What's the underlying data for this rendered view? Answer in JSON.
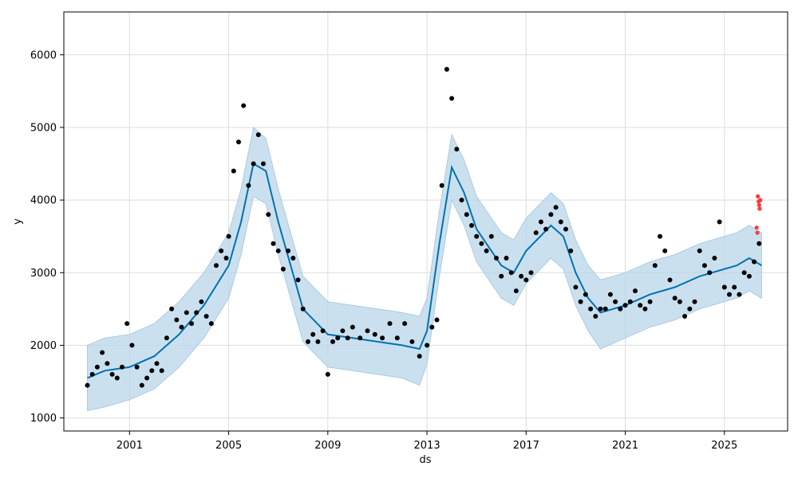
{
  "chart_data": {
    "type": "scatter",
    "title": "",
    "xlabel": "ds",
    "ylabel": "y",
    "x_tick_labels": [
      "2001",
      "2005",
      "2009",
      "2013",
      "2017",
      "2021",
      "2025"
    ],
    "y_tick_labels": [
      "1000",
      "2000",
      "3000",
      "4000",
      "5000",
      "6000"
    ],
    "xlim": [
      1998.35,
      2027.55
    ],
    "ylim": [
      820,
      6590
    ],
    "grid": true,
    "colors": {
      "observed": "#000000",
      "outlier": "#ff3b3b",
      "forecast_line": "#0072B2",
      "uncertainty_band": "#b9d5ea",
      "grid": "#dddddd"
    },
    "series": [
      {
        "role": "observed",
        "x": [
          1999.3,
          1999.5,
          1999.7,
          1999.9,
          2000.1,
          2000.3,
          2000.5,
          2000.7,
          2000.9,
          2001.1,
          2001.3,
          2001.5,
          2001.7,
          2001.9,
          2002.1,
          2002.3,
          2002.5,
          2002.7,
          2002.9,
          2003.1,
          2003.3,
          2003.5,
          2003.7,
          2003.9,
          2004.1,
          2004.3,
          2004.5,
          2004.7,
          2004.9,
          2005.0,
          2005.2,
          2005.4,
          2005.6,
          2005.8,
          2006.0,
          2006.2,
          2006.4,
          2006.6,
          2006.8,
          2007.0,
          2007.2,
          2007.4,
          2007.6,
          2007.8,
          2008.0,
          2008.2,
          2008.4,
          2008.6,
          2008.8,
          2009.0,
          2009.2,
          2009.4,
          2009.6,
          2009.8,
          2010.0,
          2010.3,
          2010.6,
          2010.9,
          2011.2,
          2011.5,
          2011.8,
          2012.1,
          2012.4,
          2012.7,
          2013.0,
          2013.2,
          2013.4,
          2013.6,
          2013.8,
          2014.0,
          2014.2,
          2014.4,
          2014.6,
          2014.8,
          2015.0,
          2015.2,
          2015.4,
          2015.6,
          2015.8,
          2016.0,
          2016.2,
          2016.4,
          2016.6,
          2016.8,
          2017.0,
          2017.2,
          2017.4,
          2017.6,
          2017.8,
          2018.0,
          2018.2,
          2018.4,
          2018.6,
          2018.8,
          2019.0,
          2019.2,
          2019.4,
          2019.6,
          2019.8,
          2020.0,
          2020.2,
          2020.4,
          2020.6,
          2020.8,
          2021.0,
          2021.2,
          2021.4,
          2021.6,
          2021.8,
          2022.0,
          2022.2,
          2022.4,
          2022.6,
          2022.8,
          2023.0,
          2023.2,
          2023.4,
          2023.6,
          2023.8,
          2024.0,
          2024.2,
          2024.4,
          2024.6,
          2024.8,
          2025.0,
          2025.2,
          2025.4,
          2025.6,
          2025.8,
          2026.0,
          2026.2,
          2026.4
        ],
        "y": [
          1450,
          1600,
          1700,
          1900,
          1750,
          1600,
          1550,
          1700,
          2300,
          2000,
          1700,
          1450,
          1550,
          1650,
          1750,
          1650,
          2100,
          2500,
          2350,
          2250,
          2450,
          2300,
          2450,
          2600,
          2400,
          2300,
          3100,
          3300,
          3200,
          3500,
          4400,
          4800,
          5300,
          4200,
          4500,
          4900,
          4500,
          3800,
          3400,
          3300,
          3050,
          3300,
          3200,
          2900,
          2500,
          2050,
          2150,
          2050,
          2200,
          1600,
          2050,
          2100,
          2200,
          2100,
          2250,
          2100,
          2200,
          2150,
          2100,
          2300,
          2100,
          2300,
          2050,
          1850,
          2000,
          2250,
          2350,
          4200,
          5800,
          5400,
          4700,
          4000,
          3800,
          3650,
          3500,
          3400,
          3300,
          3500,
          3200,
          2950,
          3200,
          3000,
          2750,
          2950,
          2900,
          3000,
          3550,
          3700,
          3600,
          3800,
          3900,
          3700,
          3600,
          3300,
          2800,
          2600,
          2700,
          2500,
          2400,
          2500,
          2500,
          2700,
          2600,
          2500,
          2550,
          2600,
          2750,
          2550,
          2500,
          2600,
          3100,
          3500,
          3300,
          2900,
          2650,
          2600,
          2400,
          2500,
          2600,
          3300,
          3100,
          3000,
          3200,
          3700,
          2800,
          2700,
          2800,
          2700,
          3000,
          2950,
          3150,
          3400
        ]
      },
      {
        "role": "outlier",
        "x": [
          2026.35,
          2026.38,
          2026.4,
          2026.42,
          2026.45,
          2026.3,
          2026.33
        ],
        "y": [
          4050,
          3980,
          3930,
          3880,
          4000,
          3620,
          3550
        ]
      },
      {
        "role": "forecast",
        "x": [
          1999.3,
          2000.0,
          2001.0,
          2002.0,
          2003.0,
          2004.0,
          2005.0,
          2005.5,
          2006.0,
          2006.5,
          2007.0,
          2007.5,
          2008.0,
          2009.0,
          2010.0,
          2011.0,
          2012.0,
          2012.7,
          2013.0,
          2013.5,
          2014.0,
          2014.5,
          2015.0,
          2016.0,
          2016.5,
          2017.0,
          2018.0,
          2018.5,
          2019.0,
          2019.5,
          2020.0,
          2021.0,
          2022.0,
          2023.0,
          2024.0,
          2025.0,
          2025.5,
          2026.0,
          2026.5
        ],
        "y": [
          1550,
          1650,
          1700,
          1850,
          2150,
          2550,
          3100,
          3700,
          4500,
          4400,
          3700,
          3100,
          2500,
          2150,
          2100,
          2050,
          2000,
          1950,
          2200,
          3400,
          4450,
          4100,
          3600,
          3100,
          3000,
          3300,
          3650,
          3500,
          3000,
          2650,
          2450,
          2550,
          2700,
          2800,
          2950,
          3050,
          3100,
          3200,
          3100
        ]
      }
    ],
    "uncertainty": {
      "x": [
        1999.3,
        2000.0,
        2001.0,
        2002.0,
        2003.0,
        2004.0,
        2005.0,
        2005.5,
        2006.0,
        2006.5,
        2007.0,
        2007.5,
        2008.0,
        2009.0,
        2010.0,
        2011.0,
        2012.0,
        2012.7,
        2013.0,
        2013.5,
        2014.0,
        2014.5,
        2015.0,
        2016.0,
        2016.5,
        2017.0,
        2018.0,
        2018.5,
        2019.0,
        2019.5,
        2020.0,
        2021.0,
        2022.0,
        2023.0,
        2024.0,
        2025.0,
        2025.5,
        2026.0,
        2026.5
      ],
      "lower": [
        1100,
        1150,
        1250,
        1400,
        1700,
        2100,
        2650,
        3250,
        4050,
        3950,
        3250,
        2650,
        2050,
        1700,
        1650,
        1600,
        1550,
        1450,
        1750,
        2950,
        4000,
        3650,
        3150,
        2650,
        2550,
        2850,
        3200,
        3050,
        2550,
        2200,
        1950,
        2100,
        2250,
        2350,
        2500,
        2600,
        2650,
        2750,
        2650
      ],
      "upper": [
        2000,
        2100,
        2150,
        2300,
        2600,
        3000,
        3550,
        4150,
        5000,
        4850,
        4150,
        3550,
        2950,
        2600,
        2550,
        2500,
        2450,
        2400,
        2650,
        3850,
        4900,
        4550,
        4050,
        3550,
        3450,
        3750,
        4100,
        3950,
        3450,
        3100,
        2900,
        3000,
        3150,
        3250,
        3400,
        3500,
        3550,
        3650,
        3550
      ]
    }
  }
}
